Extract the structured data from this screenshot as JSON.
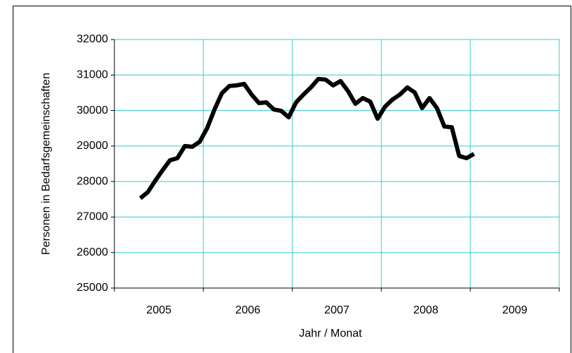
{
  "chart_data": {
    "type": "line",
    "y_label": "Personen in Bedarfsgemeinschaften",
    "x_label": "Jahr / Monat",
    "x_group_labels": [
      "2005",
      "2006",
      "2007",
      "2008",
      "2009"
    ],
    "categories": [
      null,
      null,
      null,
      null,
      null,
      null,
      null,
      null,
      null,
      null,
      null,
      null,
      null,
      null,
      null,
      null,
      null,
      null,
      null,
      null,
      null,
      null,
      null,
      null,
      null,
      null,
      null,
      null,
      null,
      null,
      null,
      null,
      null,
      null,
      null,
      null,
      null,
      null,
      null,
      null,
      null,
      null,
      null,
      null,
      null,
      null,
      null,
      null,
      null,
      null,
      null,
      null,
      null,
      null,
      null,
      null,
      null,
      null,
      null,
      null
    ],
    "series": [
      {
        "color": "#000000",
        "values": [
          null,
          null,
          null,
          27530,
          27700,
          28020,
          28320,
          28600,
          28660,
          29000,
          28980,
          29120,
          29500,
          30030,
          30490,
          30690,
          30710,
          30750,
          30450,
          30210,
          30230,
          30030,
          29990,
          29810,
          30230,
          30450,
          30650,
          30890,
          30870,
          30710,
          30830,
          30550,
          30190,
          30350,
          30250,
          29770,
          30110,
          30310,
          30450,
          30650,
          30510,
          30070,
          30350,
          30070,
          29550,
          29530,
          28720,
          28660,
          28780,
          null,
          null,
          null,
          null,
          null,
          null,
          null,
          null,
          null,
          null,
          null
        ]
      }
    ],
    "ylim": [
      25000,
      32000
    ],
    "yticks": [
      25000,
      26000,
      27000,
      28000,
      29000,
      30000,
      31000,
      32000
    ],
    "grid": true,
    "grid_color": "#33cccc"
  }
}
